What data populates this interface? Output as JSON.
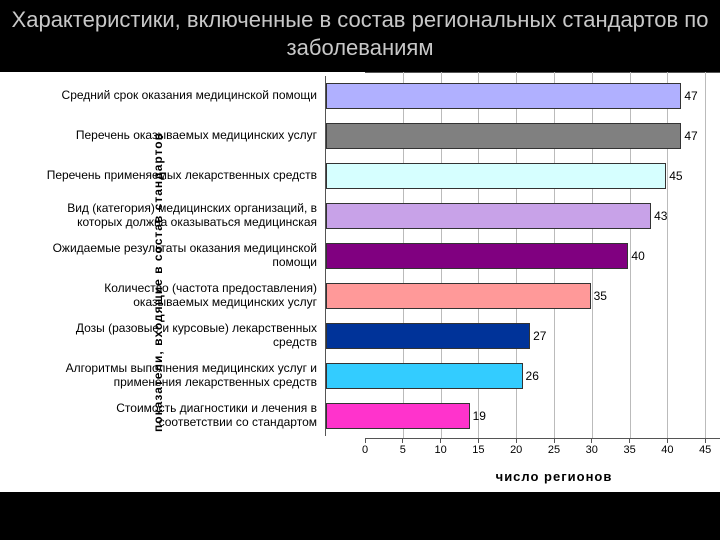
{
  "title": "Характеристики, включенные в состав региональных стандартов по заболеваниям",
  "chart": {
    "type": "bar-horizontal",
    "x_axis_title": "число  регионов",
    "y_axis_title": "показатели,  входящие  в  состав  стандартов",
    "x_min": 0,
    "x_max": 50,
    "x_tick_step": 5,
    "background_color": "#ffffff",
    "grid_color": "#bbbbbb",
    "axis_color": "#555555",
    "label_fontsize": 12,
    "bars": [
      {
        "label": "Средний срок оказания медицинской помощи",
        "value": 47,
        "color": "#b0b0ff"
      },
      {
        "label": "Перечень оказываемых медицинских услуг",
        "value": 47,
        "color": "#808080"
      },
      {
        "label": "Перечень применяемых лекарственных средств",
        "value": 45,
        "color": "#d6ffff"
      },
      {
        "label": "Вид (категория) медицинских организаций, в которых должна оказываться медицинская",
        "value": 43,
        "color": "#c8a2e8"
      },
      {
        "label": "Ожидаемые результаты оказания медицинской помощи",
        "value": 40,
        "color": "#800080"
      },
      {
        "label": "Количество (частота предоставления) оказываемых медицинских услуг",
        "value": 35,
        "color": "#ff9999"
      },
      {
        "label": "Дозы (разовые и курсовые) лекарственных средств",
        "value": 27,
        "color": "#003399"
      },
      {
        "label": "Алгоритмы выполнения медицинских услуг и применения лекарственных средств",
        "value": 26,
        "color": "#33ccff"
      },
      {
        "label": "Стоимость  диагностики  и лечения  в соответствии  со  стандартом",
        "value": 19,
        "color": "#ff33cc"
      }
    ]
  }
}
